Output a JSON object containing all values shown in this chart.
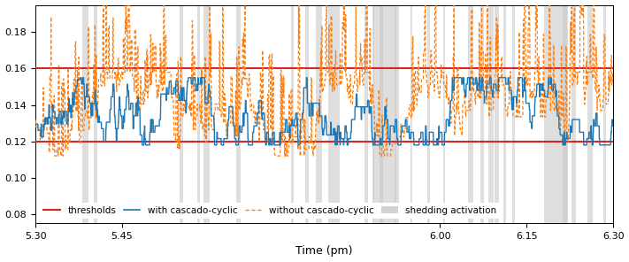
{
  "title": "",
  "xlabel": "Time (pm)",
  "ylabel": "",
  "xlim": [
    5.3,
    6.3
  ],
  "ylim": [
    0.075,
    0.195
  ],
  "yticks": [
    0.08,
    0.1,
    0.12,
    0.14,
    0.16,
    0.18
  ],
  "xticks": [
    5.3,
    5.45,
    6.0,
    6.15,
    6.3
  ],
  "xticklabels": [
    "5.30",
    "5.45",
    "6.00",
    "6.15",
    "6.30"
  ],
  "threshold_high": 0.16,
  "threshold_low": 0.12,
  "threshold_color": "#d62728",
  "line_with_color": "#1f77b4",
  "line_without_color": "#ff7f0e",
  "shade_color": "#c8c8c8",
  "shade_alpha": 0.6,
  "figsize": [
    7.11,
    2.96
  ],
  "dpi": 100
}
